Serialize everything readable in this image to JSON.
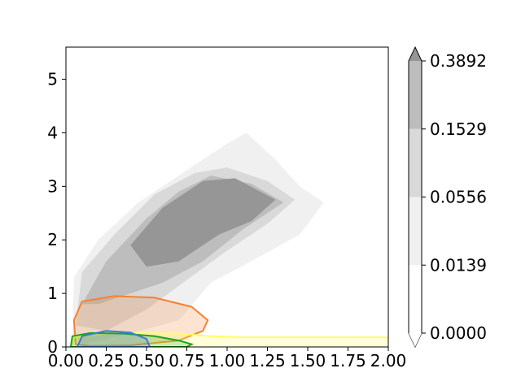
{
  "chart_data": {
    "type": "contour",
    "title": "",
    "xlabel": "",
    "ylabel": "",
    "xlim": [
      0,
      2.0
    ],
    "ylim": [
      0,
      5.6
    ],
    "x_ticks": [
      "0.00",
      "0.25",
      "0.50",
      "0.75",
      "1.00",
      "1.25",
      "1.50",
      "1.75",
      "2.00"
    ],
    "y_ticks": [
      "0",
      "1",
      "2",
      "3",
      "4",
      "5"
    ],
    "colorbar": {
      "levels": [
        "0.0000",
        "0.0139",
        "0.0556",
        "0.1529",
        "0.3892"
      ],
      "extend": "max",
      "colors": [
        "#ffffff",
        "#f0f0f0",
        "#d9d9d9",
        "#bdbdbd",
        "#969696"
      ]
    },
    "filled_density": {
      "color_scheme": "greys",
      "outer_region": [
        [
          0.04,
          0.2
        ],
        [
          0.05,
          1.3
        ],
        [
          0.2,
          2.0
        ],
        [
          0.45,
          2.7
        ],
        [
          0.7,
          3.2
        ],
        [
          1.0,
          3.8
        ],
        [
          1.12,
          4.0
        ],
        [
          1.3,
          3.5
        ],
        [
          1.45,
          3.0
        ],
        [
          1.6,
          2.7
        ],
        [
          1.45,
          2.1
        ],
        [
          1.15,
          1.6
        ],
        [
          0.9,
          1.2
        ],
        [
          0.7,
          0.5
        ],
        [
          0.4,
          0.25
        ],
        [
          0.1,
          0.05
        ]
      ],
      "mid_region": [
        [
          0.06,
          0.4
        ],
        [
          0.1,
          1.4
        ],
        [
          0.3,
          2.1
        ],
        [
          0.55,
          2.85
        ],
        [
          0.8,
          3.25
        ],
        [
          1.0,
          3.35
        ],
        [
          1.25,
          3.1
        ],
        [
          1.42,
          2.75
        ],
        [
          1.25,
          2.3
        ],
        [
          1.0,
          1.8
        ],
        [
          0.75,
          1.25
        ],
        [
          0.5,
          0.7
        ],
        [
          0.25,
          0.3
        ]
      ],
      "inner_region": [
        [
          0.1,
          0.8
        ],
        [
          0.25,
          1.6
        ],
        [
          0.5,
          2.4
        ],
        [
          0.7,
          2.9
        ],
        [
          0.9,
          3.2
        ],
        [
          1.15,
          3.05
        ],
        [
          1.35,
          2.7
        ],
        [
          1.1,
          2.2
        ],
        [
          0.85,
          1.6
        ],
        [
          0.6,
          1.2
        ],
        [
          0.4,
          1.0
        ],
        [
          0.2,
          0.8
        ]
      ],
      "core_region": [
        [
          0.4,
          1.9
        ],
        [
          0.6,
          2.6
        ],
        [
          0.85,
          3.1
        ],
        [
          1.05,
          3.15
        ],
        [
          1.3,
          2.75
        ],
        [
          1.15,
          2.35
        ],
        [
          0.95,
          2.1
        ],
        [
          0.7,
          1.6
        ],
        [
          0.5,
          1.5
        ]
      ]
    },
    "series": [
      {
        "color": "#f58231",
        "contour": [
          [
            0.06,
            0.05
          ],
          [
            0.05,
            0.5
          ],
          [
            0.1,
            0.85
          ],
          [
            0.3,
            0.95
          ],
          [
            0.55,
            0.92
          ],
          [
            0.78,
            0.75
          ],
          [
            0.88,
            0.5
          ],
          [
            0.85,
            0.3
          ],
          [
            0.7,
            0.12
          ],
          [
            0.4,
            0.03
          ],
          [
            0.15,
            0.02
          ]
        ]
      },
      {
        "color": "#ffff66",
        "contour": [
          [
            0.04,
            0.0
          ],
          [
            0.05,
            0.18
          ],
          [
            0.3,
            0.26
          ],
          [
            0.7,
            0.25
          ],
          [
            0.9,
            0.2
          ],
          [
            1.1,
            0.18
          ],
          [
            1.5,
            0.18
          ],
          [
            2.0,
            0.18
          ]
        ]
      },
      {
        "color": "#1aa51a",
        "contour": [
          [
            0.03,
            0.0
          ],
          [
            0.04,
            0.2
          ],
          [
            0.15,
            0.26
          ],
          [
            0.35,
            0.25
          ],
          [
            0.55,
            0.2
          ],
          [
            0.7,
            0.12
          ],
          [
            0.78,
            0.05
          ],
          [
            0.75,
            0.0
          ]
        ]
      },
      {
        "color": "#3a7bd5",
        "contour": [
          [
            0.07,
            0.0
          ],
          [
            0.1,
            0.2
          ],
          [
            0.25,
            0.3
          ],
          [
            0.4,
            0.27
          ],
          [
            0.5,
            0.15
          ],
          [
            0.52,
            0.0
          ]
        ]
      }
    ]
  }
}
